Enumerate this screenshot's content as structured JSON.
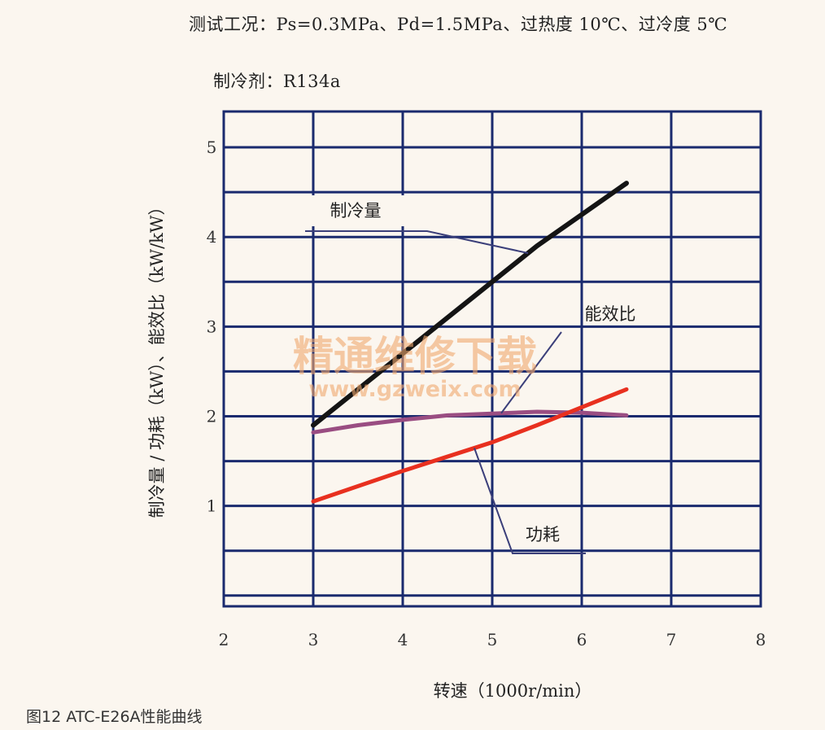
{
  "header": {
    "conditions": "测试工况：Ps=0.3MPa、Pd=1.5MPa、过热度 10℃、过冷度 5℃",
    "refrigerant": "制冷剂：R134a"
  },
  "caption": "图12   ATC-E26A性能曲线",
  "watermark": {
    "line1": "精通维修下载",
    "line2": "www.gzweix.com"
  },
  "chart_data": {
    "type": "line",
    "title": "",
    "xlabel": "转速（1000r/min）",
    "ylabel": "制冷量 / 功耗（kW）、能效比（kW/kW）",
    "xlim": [
      2,
      8
    ],
    "ylim": [
      -0.12,
      5.4
    ],
    "x_ticks": [
      2,
      3,
      4,
      5,
      6,
      7,
      8
    ],
    "y_ticks": [
      1,
      2,
      3,
      4,
      5
    ],
    "grid": true,
    "series": [
      {
        "name": "制冷量",
        "color": "#141414",
        "x": [
          3,
          3.5,
          4,
          4.5,
          5,
          5.5,
          6,
          6.5
        ],
        "y": [
          1.9,
          2.3,
          2.7,
          3.1,
          3.5,
          3.9,
          4.25,
          4.6
        ]
      },
      {
        "name": "能效比",
        "color": "#9a4d82",
        "x": [
          3,
          3.5,
          4,
          4.5,
          5,
          5.5,
          6,
          6.5
        ],
        "y": [
          1.82,
          1.9,
          1.96,
          2.01,
          2.03,
          2.05,
          2.04,
          2.01
        ]
      },
      {
        "name": "功耗",
        "color": "#e8301f",
        "x": [
          3,
          3.5,
          4,
          4.5,
          5,
          5.5,
          6,
          6.5
        ],
        "y": [
          1.05,
          1.22,
          1.39,
          1.55,
          1.71,
          1.9,
          2.1,
          2.3
        ]
      }
    ],
    "annotations": [
      {
        "text": "制冷量",
        "series": 0
      },
      {
        "text": "能效比",
        "series": 1
      },
      {
        "text": "功耗",
        "series": 2
      }
    ]
  }
}
